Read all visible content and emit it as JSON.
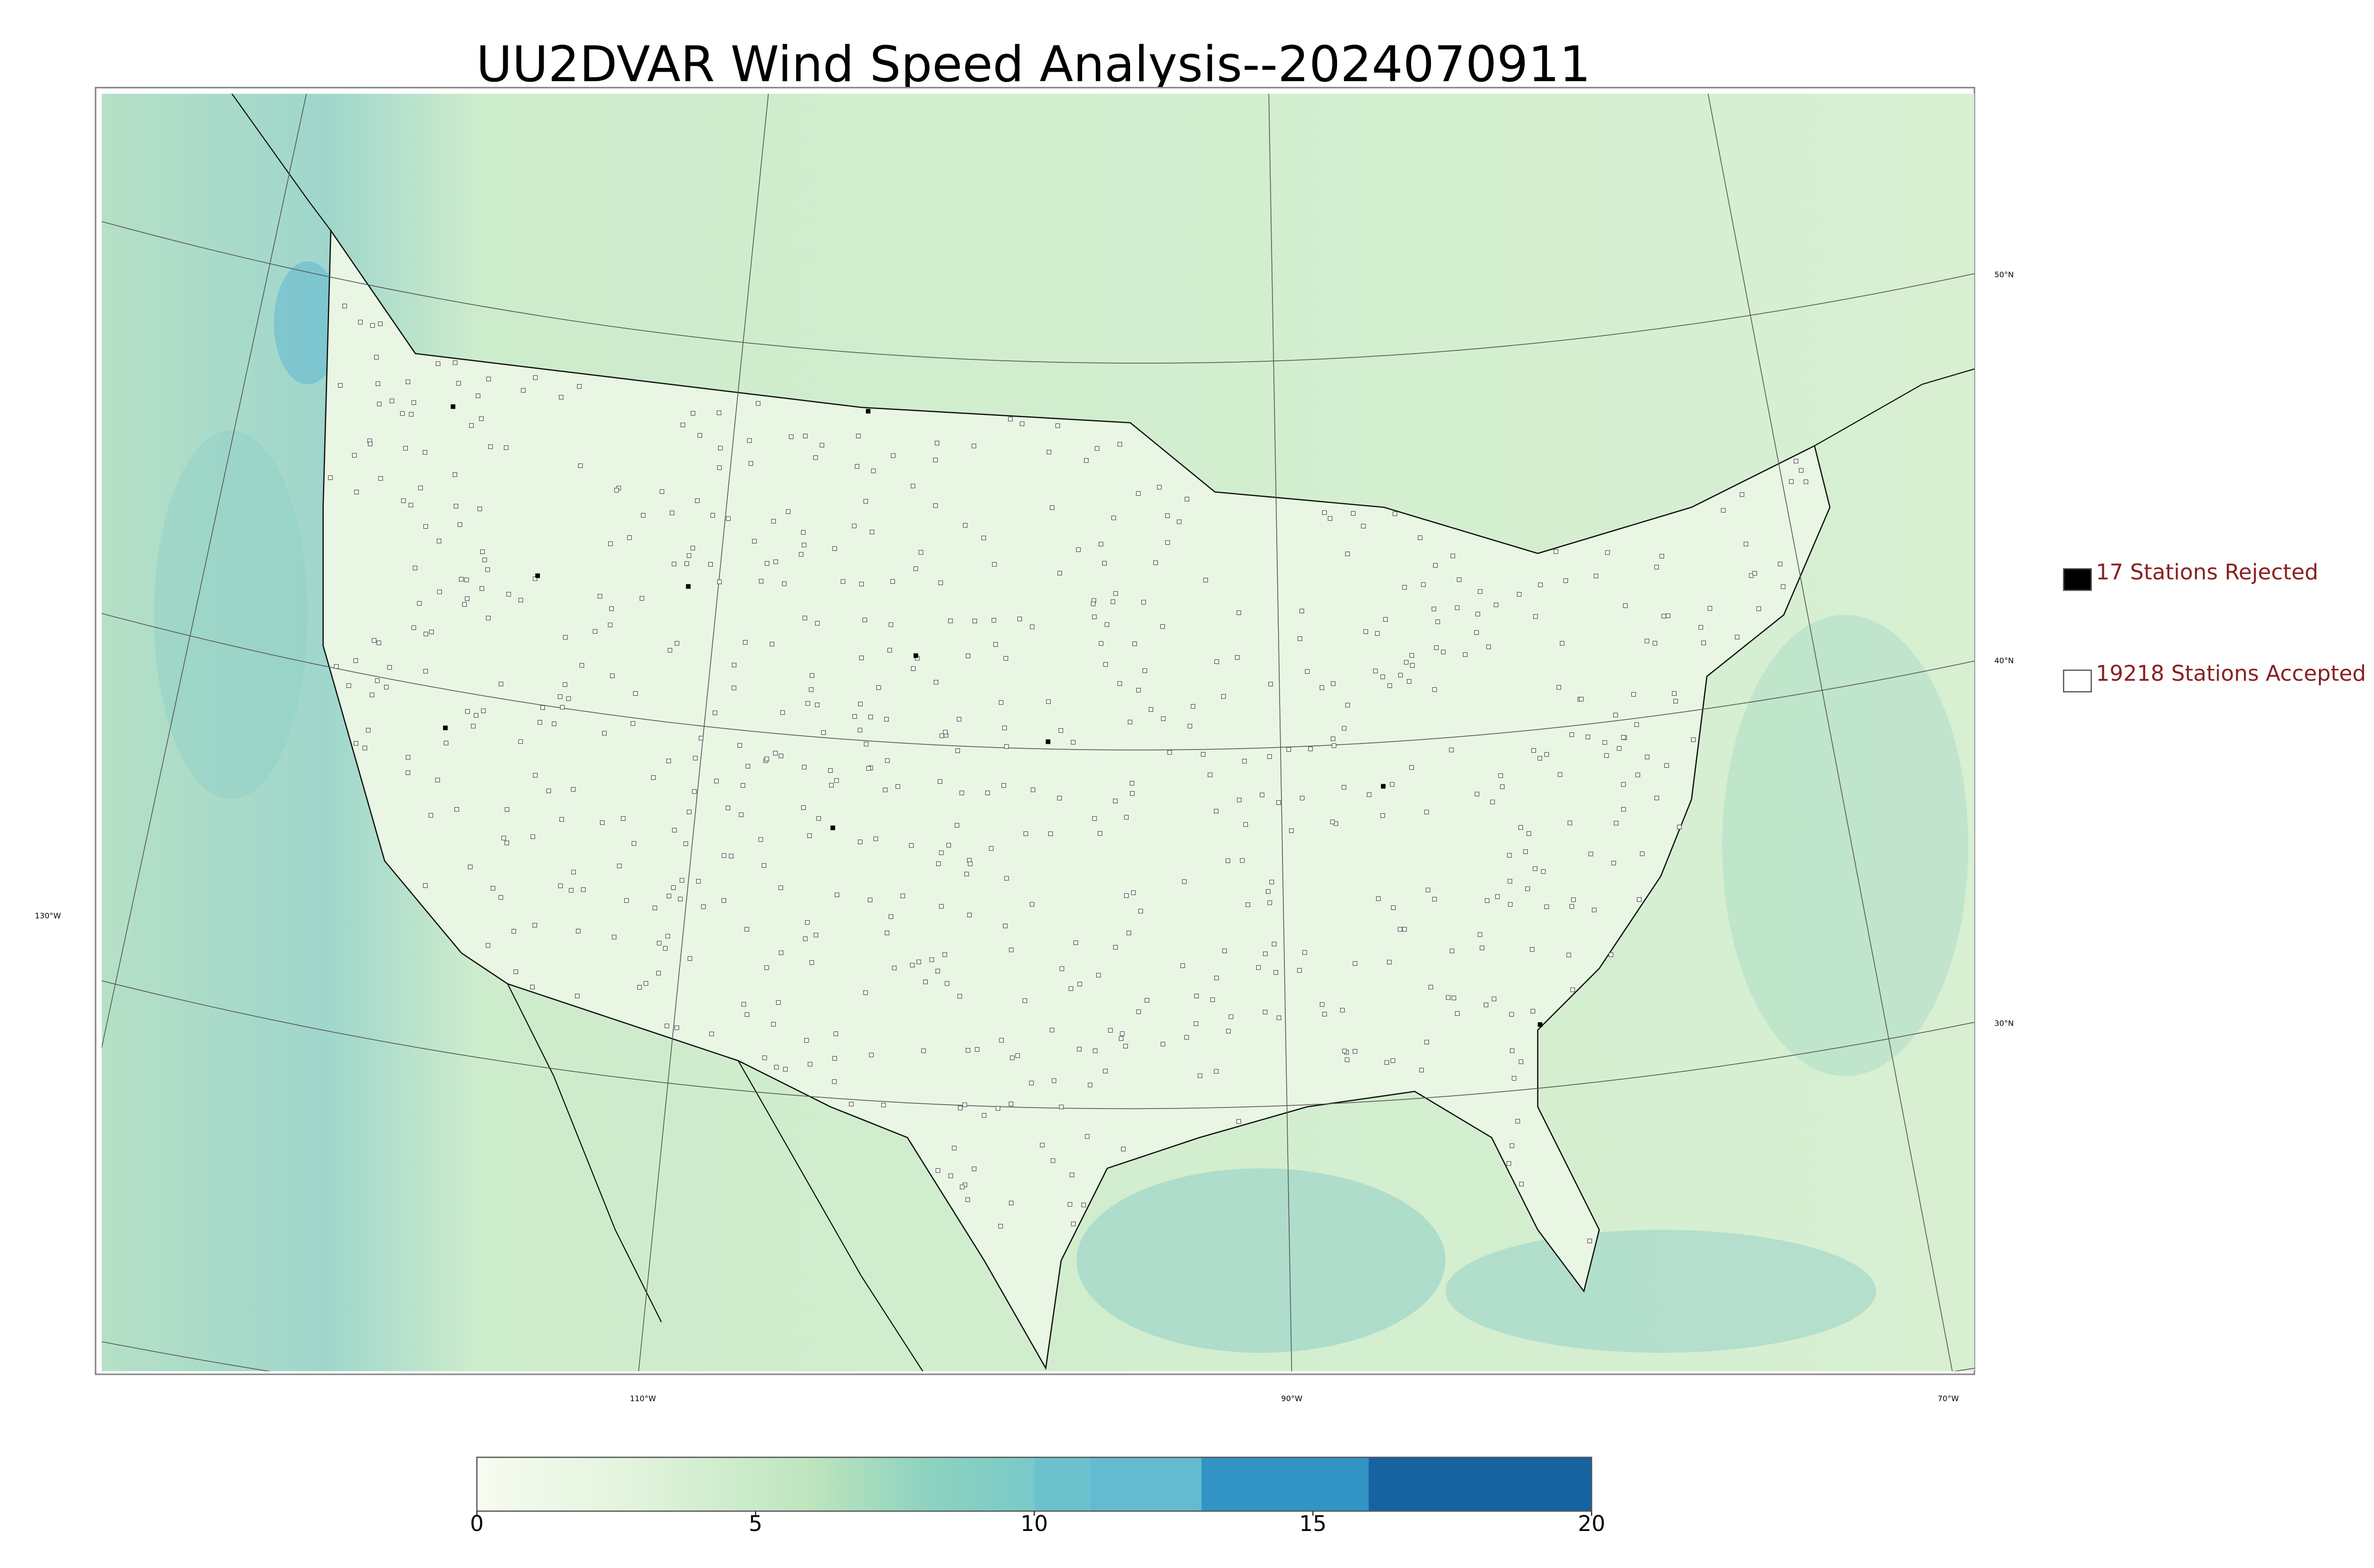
{
  "title": "UU2DVAR Wind Speed Analysis--2024070911",
  "graticule_labels": [
    "50°N",
    "40°N",
    "30°N",
    "130°W",
    "110°W",
    "90°W",
    "70°W"
  ],
  "legend": [
    {
      "label": "17 Stations Rejected",
      "color": "#000000"
    },
    {
      "label": "19218 Stations Accepted",
      "color": "#ffffff"
    }
  ],
  "colorbar": {
    "lim": [
      0,
      20
    ],
    "ticks": [
      0,
      5,
      10,
      15,
      20
    ],
    "color_stops": [
      {
        "value": 0,
        "color": "#f7fcf0"
      },
      {
        "value": 3,
        "color": "#e0f3db"
      },
      {
        "value": 6,
        "color": "#bde5be"
      },
      {
        "value": 8,
        "color": "#8fd3bf"
      },
      {
        "value": 10,
        "color": "#78c9c8"
      }
    ],
    "bands": [
      {
        "from": 10,
        "to": 11,
        "color": "#6cc2cc"
      },
      {
        "from": 11,
        "to": 13,
        "color": "#62bbd0"
      },
      {
        "from": 13,
        "to": 16,
        "color": "#3194c5"
      },
      {
        "from": 16,
        "to": 20,
        "color": "#1563a0"
      }
    ]
  }
}
